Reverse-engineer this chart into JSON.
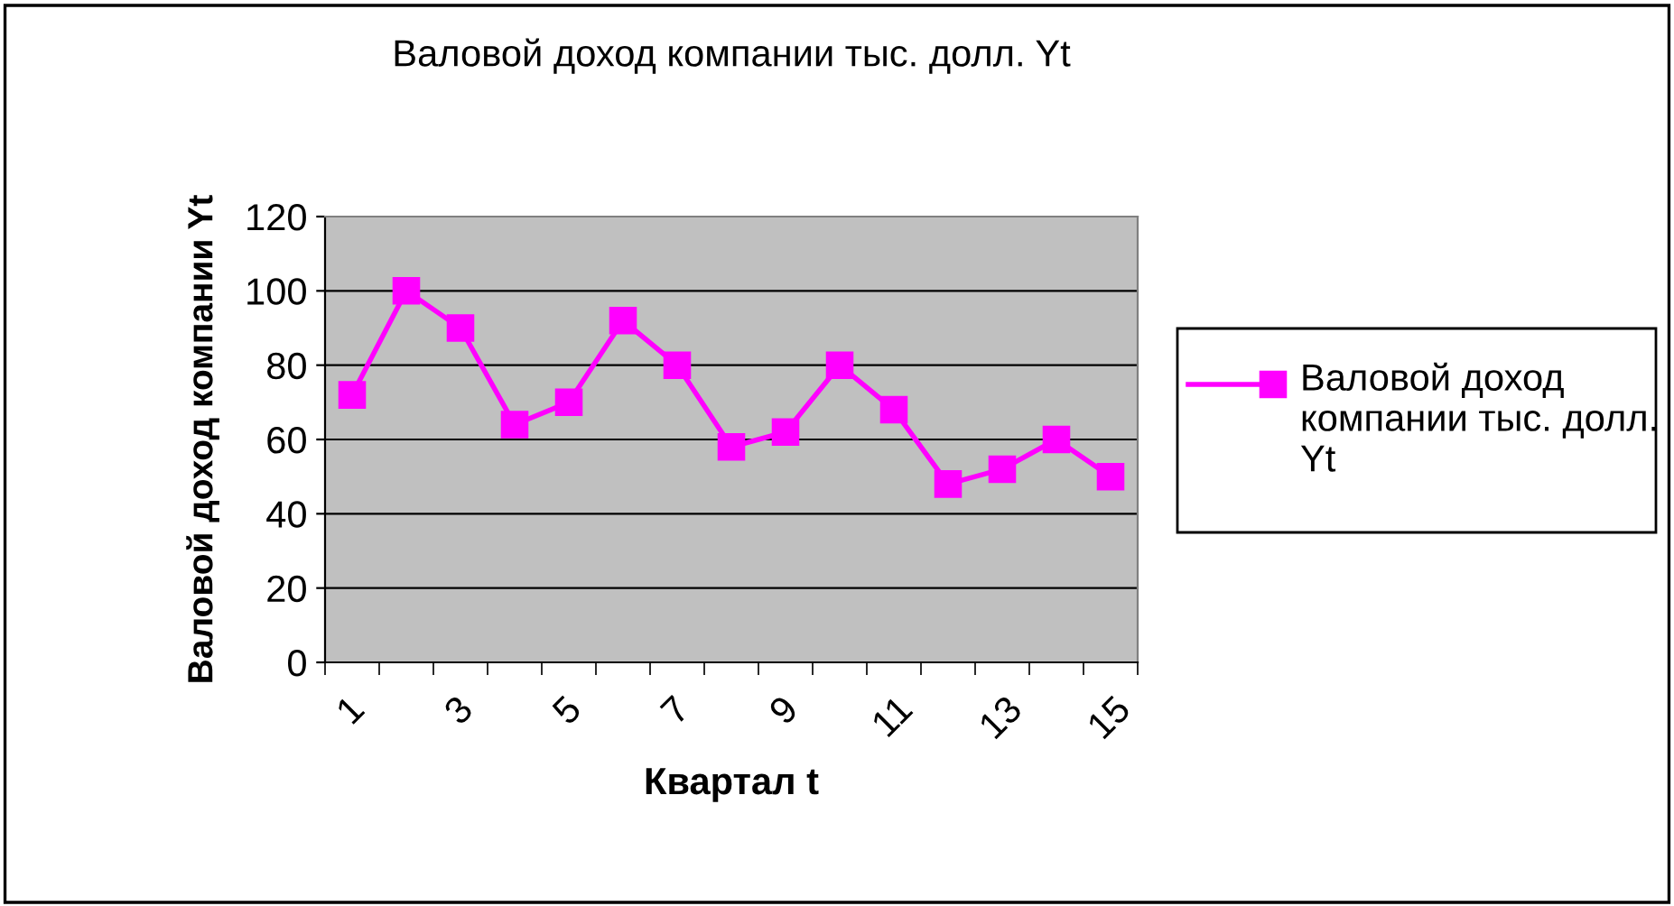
{
  "chart_data": {
    "type": "line",
    "title": "Валовой доход компании тыс. долл. Yt",
    "xlabel": "Квартал t",
    "ylabel": "Валовой доход компании Yt",
    "categories": [
      "1",
      null,
      "3",
      null,
      "5",
      null,
      "7",
      null,
      "9",
      null,
      "11",
      null,
      "13",
      null,
      "15"
    ],
    "series": [
      {
        "name": "Валовой доход компании тыс. долл. Yt",
        "color": "#ff00ff",
        "values": [
          72,
          100,
          90,
          64,
          70,
          92,
          80,
          58,
          62,
          80,
          68,
          48,
          52,
          60,
          50
        ]
      }
    ],
    "ylim": [
      0,
      120
    ],
    "yticks": [
      0,
      20,
      40,
      60,
      80,
      100,
      120
    ],
    "grid": "y",
    "legend": "right",
    "marker": "square",
    "line_style": "solid"
  }
}
